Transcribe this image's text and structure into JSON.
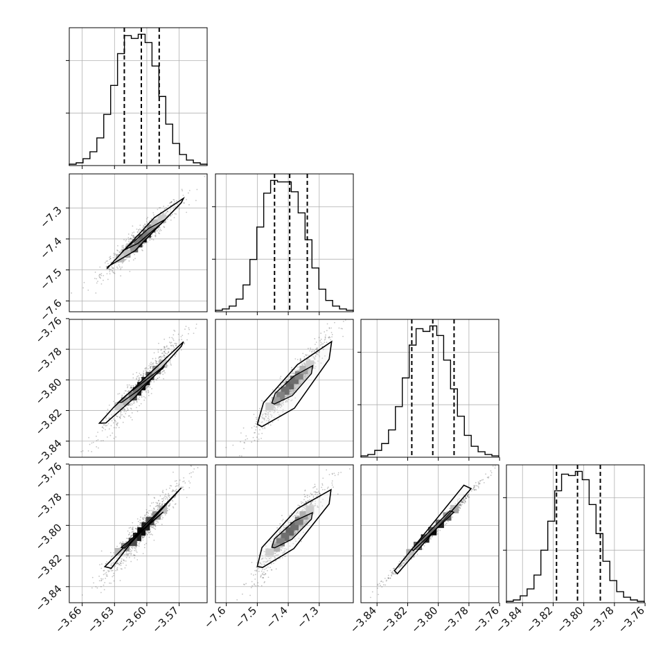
{
  "chart_data": {
    "type": "corner",
    "parameters": 4,
    "marginals": [
      {
        "hist": [
          1,
          2,
          5,
          10,
          20,
          37,
          58,
          81,
          94,
          92,
          95,
          89,
          72,
          50,
          30,
          16,
          8,
          4,
          2,
          1
        ],
        "range": [
          -3.672,
          -3.544
        ],
        "quantiles": [
          -3.6209,
          -3.6051,
          -3.5885
        ]
      },
      {
        "hist": [
          1,
          2,
          4,
          9,
          19,
          37,
          60,
          84,
          93,
          92,
          92,
          85,
          70,
          51,
          31,
          16,
          8,
          4,
          2,
          1
        ],
        "range": [
          -7.635,
          -7.19
        ],
        "quantiles": [
          -7.4443,
          -7.3954,
          -7.3386
        ]
      },
      {
        "hist": [
          1,
          2,
          5,
          10,
          20,
          37,
          58,
          82,
          94,
          92,
          96,
          89,
          71,
          50,
          30,
          16,
          8,
          4,
          2,
          1
        ],
        "range": [
          -3.8505,
          -3.7605
        ],
        "quantiles": [
          -3.8173,
          -3.8036,
          -3.7897
        ]
      },
      {
        "hist": [
          1,
          2,
          5,
          10,
          20,
          38,
          59,
          81,
          93,
          92,
          95,
          89,
          71,
          50,
          30,
          16,
          8,
          4,
          2,
          1
        ],
        "range": [
          -3.8505,
          -3.7605
        ],
        "quantiles": [
          -3.8178,
          -3.8041,
          -3.7892
        ]
      }
    ],
    "pairs": [
      {
        "row": 1,
        "col": 0,
        "x_range": [
          -3.672,
          -3.544
        ],
        "y_range": [
          -7.635,
          -7.19
        ],
        "contour": [
          [
            -3.637,
            -7.496
          ],
          [
            -3.593,
            -7.331
          ],
          [
            -3.566,
            -7.269
          ],
          [
            -3.568,
            -7.283
          ],
          [
            -3.611,
            -7.438
          ],
          [
            -3.636,
            -7.489
          ]
        ],
        "cells": [
          [
            -3.604,
            -7.398,
            10
          ],
          [
            -3.608,
            -7.414,
            8
          ],
          [
            -3.6,
            -7.383,
            8
          ],
          [
            -3.612,
            -7.43,
            6
          ],
          [
            -3.596,
            -7.366,
            6
          ],
          [
            -3.619,
            -7.447,
            3
          ],
          [
            -3.592,
            -7.35,
            3
          ],
          [
            -3.625,
            -7.462,
            2
          ],
          [
            -3.586,
            -7.335,
            2
          ]
        ]
      },
      {
        "row": 2,
        "col": 0,
        "x_range": [
          -3.672,
          -3.544
        ],
        "y_range": [
          -3.8505,
          -3.7605
        ],
        "contour": [
          [
            -3.644,
            -3.8283
          ],
          [
            -3.631,
            -3.8181
          ],
          [
            -3.566,
            -3.7751
          ],
          [
            -3.568,
            -3.7781
          ],
          [
            -3.611,
            -3.8113
          ],
          [
            -3.638,
            -3.8281
          ]
        ],
        "cells": [
          [
            -3.605,
            -3.8041,
            10
          ],
          [
            -3.609,
            -3.8075,
            9
          ],
          [
            -3.601,
            -3.8008,
            9
          ],
          [
            -3.613,
            -3.8107,
            7
          ],
          [
            -3.597,
            -3.7975,
            7
          ],
          [
            -3.62,
            -3.8141,
            4
          ],
          [
            -3.591,
            -3.7935,
            4
          ],
          [
            -3.626,
            -3.8175,
            2
          ],
          [
            -3.585,
            -3.7895,
            2
          ]
        ]
      },
      {
        "row": 2,
        "col": 1,
        "x_range": [
          -7.635,
          -7.19
        ],
        "y_range": [
          -3.8505,
          -3.7605
        ],
        "contour": [
          [
            -7.5,
            -3.829
          ],
          [
            -7.48,
            -3.815
          ],
          [
            -7.37,
            -3.79
          ],
          [
            -7.26,
            -3.775
          ],
          [
            -7.268,
            -3.7865
          ],
          [
            -7.38,
            -3.8185
          ],
          [
            -7.485,
            -3.8305
          ]
        ],
        "cells": [
          [
            -7.395,
            -3.8035,
            10
          ],
          [
            -7.41,
            -3.807,
            9
          ],
          [
            -7.38,
            -3.8,
            9
          ],
          [
            -7.425,
            -3.8105,
            7
          ],
          [
            -7.365,
            -3.797,
            7
          ],
          [
            -7.44,
            -3.814,
            4
          ],
          [
            -7.35,
            -3.7935,
            4
          ],
          [
            -7.46,
            -3.8175,
            2
          ],
          [
            -7.33,
            -3.79,
            2
          ]
        ]
      },
      {
        "row": 3,
        "col": 0,
        "x_range": [
          -3.672,
          -3.544
        ],
        "y_range": [
          -3.8505,
          -3.7605
        ],
        "contour": [
          [
            -3.639,
            -3.827
          ],
          [
            -3.627,
            -3.8185
          ],
          [
            -3.568,
            -3.7755
          ],
          [
            -3.573,
            -3.7795
          ],
          [
            -3.615,
            -3.8117
          ],
          [
            -3.633,
            -3.828
          ]
        ],
        "cells": [
          [
            -3.605,
            -3.804,
            10
          ],
          [
            -3.609,
            -3.8075,
            9
          ],
          [
            -3.601,
            -3.8006,
            9
          ],
          [
            -3.613,
            -3.8108,
            7
          ],
          [
            -3.597,
            -3.7972,
            7
          ],
          [
            -3.62,
            -3.8142,
            4
          ],
          [
            -3.591,
            -3.7936,
            4
          ],
          [
            -3.626,
            -3.8175,
            2
          ],
          [
            -3.585,
            -3.7897,
            2
          ]
        ]
      },
      {
        "row": 3,
        "col": 1,
        "x_range": [
          -7.635,
          -7.19
        ],
        "y_range": [
          -3.8505,
          -3.7605
        ],
        "contour": [
          [
            -7.5,
            -3.8268
          ],
          [
            -7.485,
            -3.8145
          ],
          [
            -7.37,
            -3.789
          ],
          [
            -7.262,
            -3.7767
          ],
          [
            -7.268,
            -3.786
          ],
          [
            -7.382,
            -3.8152
          ],
          [
            -7.483,
            -3.8275
          ]
        ],
        "cells": [
          [
            -7.395,
            -3.804,
            10
          ],
          [
            -7.41,
            -3.8075,
            9
          ],
          [
            -7.38,
            -3.8005,
            9
          ],
          [
            -7.425,
            -3.811,
            7
          ],
          [
            -7.365,
            -3.797,
            7
          ],
          [
            -7.44,
            -3.8145,
            4
          ],
          [
            -7.35,
            -3.7935,
            4
          ],
          [
            -7.46,
            -3.8178,
            2
          ],
          [
            -7.33,
            -3.79,
            2
          ]
        ]
      },
      {
        "row": 3,
        "col": 2,
        "x_range": [
          -3.8505,
          -3.7605
        ],
        "y_range": [
          -3.8505,
          -3.7605
        ],
        "contour": [
          [
            -3.8286,
            -3.8296
          ],
          [
            -3.7833,
            -3.7738
          ],
          [
            -3.7786,
            -3.776
          ],
          [
            -3.8267,
            -3.8316
          ]
        ],
        "cells": [
          [
            -3.8038,
            -3.8038,
            10
          ],
          [
            -3.8086,
            -3.8086,
            9
          ],
          [
            -3.799,
            -3.799,
            9
          ],
          [
            -3.8134,
            -3.8134,
            6
          ],
          [
            -3.7942,
            -3.7942,
            6
          ],
          [
            -3.8182,
            -3.8182,
            3
          ],
          [
            -3.7894,
            -3.7894,
            3
          ]
        ]
      }
    ],
    "x_tick_labels": [
      [
        "−3.66",
        "−3.63",
        "−3.60",
        "−3.57"
      ],
      [
        "−7.6",
        "−7.5",
        "−7.4",
        "−7.3"
      ],
      [
        "−3.84",
        "−3.82",
        "−3.80",
        "−3.78",
        "−3.76"
      ],
      [
        "−3.84",
        "−3.82",
        "−3.80",
        "−3.78",
        "−3.76"
      ]
    ],
    "x_tick_values": [
      [
        -3.66,
        -3.63,
        -3.6,
        -3.57
      ],
      [
        -7.6,
        -7.5,
        -7.4,
        -7.3
      ],
      [
        -3.84,
        -3.82,
        -3.8,
        -3.78,
        -3.76
      ],
      [
        -3.84,
        -3.82,
        -3.8,
        -3.78,
        -3.76
      ]
    ],
    "y_tick_labels": [
      null,
      [
        "−7.3",
        "−7.4",
        "−7.5",
        "−7.6"
      ],
      [
        "−3.76",
        "−3.78",
        "−3.80",
        "−3.82",
        "−3.84"
      ],
      [
        "−3.76",
        "−3.78",
        "−3.80",
        "−3.82",
        "−3.84"
      ]
    ],
    "y_tick_values": [
      null,
      [
        -7.3,
        -7.4,
        -7.5,
        -7.6
      ],
      [
        -3.76,
        -3.78,
        -3.8,
        -3.82,
        -3.84
      ],
      [
        -3.76,
        -3.78,
        -3.8,
        -3.82,
        -3.84
      ]
    ],
    "grid": true,
    "colors": {
      "line": "#000000",
      "scatter": "#555555",
      "grid": "#b0b0b0"
    }
  }
}
